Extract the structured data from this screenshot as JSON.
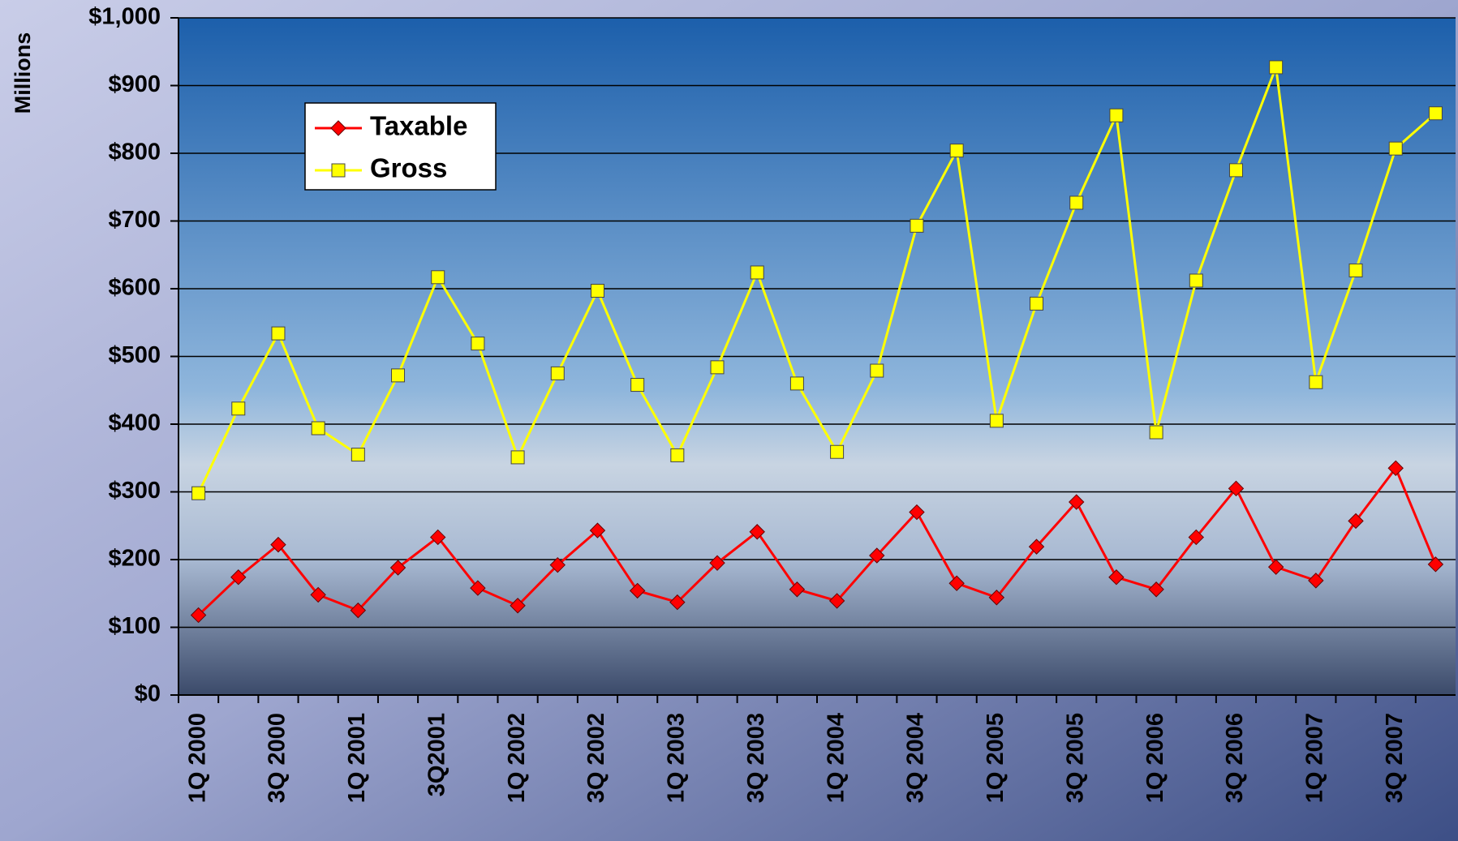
{
  "chart_data": {
    "type": "line",
    "y_label": "Millions",
    "categories": [
      "1Q 2000",
      null,
      "3Q 2000",
      null,
      "1Q 2001",
      null,
      "3Q2001",
      null,
      "1Q 2002",
      null,
      "3Q 2002",
      null,
      "1Q 2003",
      null,
      "3Q 2003",
      null,
      "1Q 2004",
      null,
      "3Q 2004",
      null,
      "1Q 2005",
      null,
      "3Q 2005",
      null,
      "1Q 2006",
      null,
      "3Q 2006",
      null,
      "1Q 2007",
      null,
      "3Q 2007",
      null
    ],
    "series": [
      {
        "name": "Taxable",
        "color": "#ff0000",
        "marker": "diamond",
        "values": [
          118,
          174,
          222,
          148,
          125,
          188,
          233,
          158,
          132,
          192,
          243,
          154,
          137,
          195,
          241,
          156,
          139,
          206,
          270,
          165,
          144,
          219,
          285,
          174,
          156,
          233,
          305,
          189,
          169,
          257,
          335,
          193
        ]
      },
      {
        "name": "Gross",
        "color": "#ffff00",
        "marker": "square",
        "values": [
          298,
          423,
          534,
          394,
          355,
          472,
          617,
          519,
          351,
          475,
          597,
          458,
          354,
          484,
          624,
          460,
          359,
          479,
          693,
          804,
          405,
          578,
          727,
          856,
          388,
          612,
          775,
          927,
          462,
          627,
          807,
          859
        ]
      }
    ],
    "ylim": [
      0,
      1000
    ],
    "yticks": [
      {
        "value": 0,
        "label": "$0"
      },
      {
        "value": 100,
        "label": "$100"
      },
      {
        "value": 200,
        "label": "$200"
      },
      {
        "value": 300,
        "label": "$300"
      },
      {
        "value": 400,
        "label": "$400"
      },
      {
        "value": 500,
        "label": "$500"
      },
      {
        "value": 600,
        "label": "$600"
      },
      {
        "value": 700,
        "label": "$700"
      },
      {
        "value": 800,
        "label": "$800"
      },
      {
        "value": 900,
        "label": "$900"
      },
      {
        "value": 1000,
        "label": "$1,000"
      }
    ],
    "grid": true,
    "legend": "top-left"
  }
}
